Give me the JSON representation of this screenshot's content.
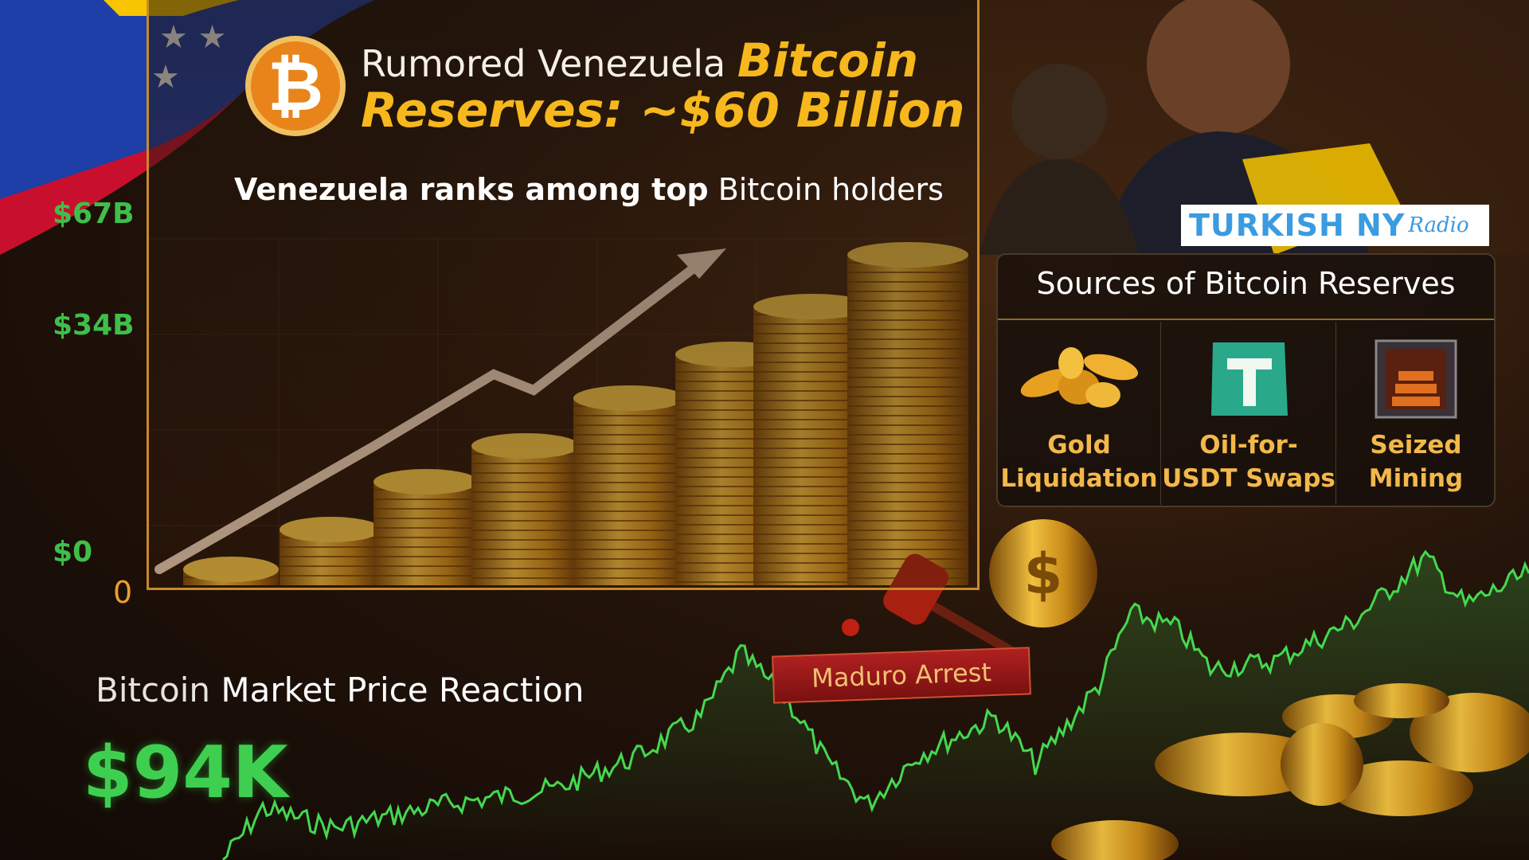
{
  "header": {
    "title_prefix": "Rumored Venezuela",
    "title_highlight": "Bitcoin",
    "title_line2": "Reserves: ~$60 Billion",
    "subtitle_bold": "Venezuela ranks among top",
    "subtitle_rest": "Bitcoin holders"
  },
  "reserve_axis": {
    "labels": [
      "$67B",
      "$34B",
      "$0"
    ],
    "origin": "0"
  },
  "watermark": {
    "main": "TURKISH NY",
    "script": "Radio"
  },
  "sources": {
    "title": "Sources of Bitcoin Reserves",
    "items": [
      {
        "line1": "Gold",
        "line2": "Liquidation",
        "icon": "gold-nuggets-icon"
      },
      {
        "line1": "Oil-for-",
        "line2": "USDT Swaps",
        "icon": "tether-icon"
      },
      {
        "line1": "Seized",
        "line2": "Mining",
        "icon": "mining-rig-icon"
      }
    ]
  },
  "event_label": "Maduro Arrest",
  "market": {
    "title_light": "Bitcoin",
    "title_rest": "Market Price Reaction",
    "price": "$94K"
  },
  "colors": {
    "accent_gold": "#f6b81c",
    "price_green": "#3fcf50",
    "logo_blue": "#3b9be0",
    "flag": [
      "#f7c600",
      "#1f3fa8",
      "#c8102e"
    ]
  }
}
